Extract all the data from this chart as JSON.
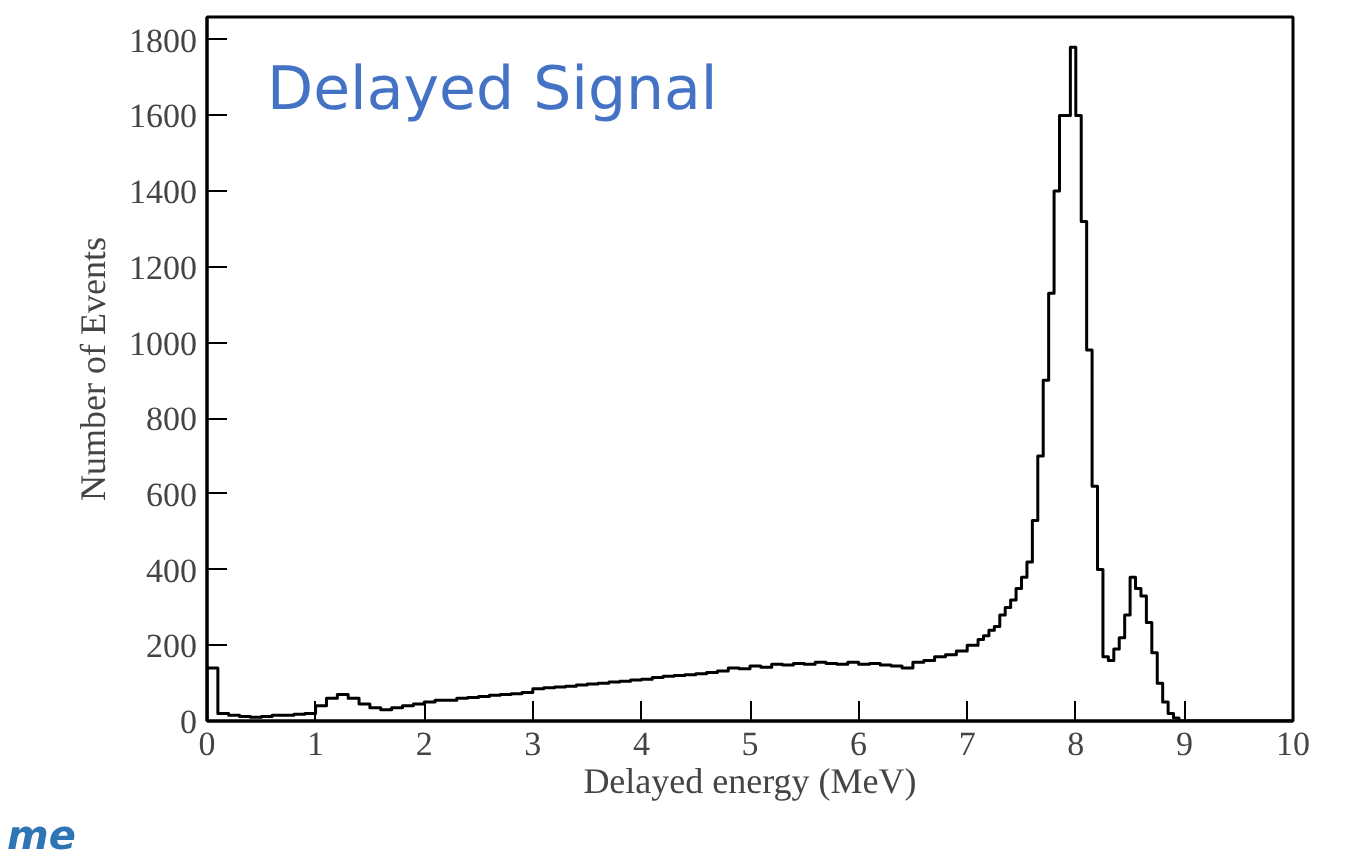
{
  "chart_data": {
    "type": "histogram",
    "title": "Delayed Signal",
    "xlabel": "Delayed energy (MeV)",
    "ylabel": "Number of Events",
    "annotations": [
      "me"
    ],
    "bins": [
      0,
      0.1,
      0.2,
      0.3,
      0.4,
      0.5,
      0.6,
      0.7,
      0.8,
      0.9,
      1.0,
      1.1,
      1.2,
      1.3,
      1.4,
      1.5,
      1.6,
      1.7,
      1.8,
      1.9,
      2.0,
      2.1,
      2.2,
      2.3,
      2.4,
      2.5,
      2.6,
      2.7,
      2.8,
      2.9,
      3.0,
      3.1,
      3.2,
      3.3,
      3.4,
      3.5,
      3.6,
      3.7,
      3.8,
      3.9,
      4.0,
      4.1,
      4.2,
      4.3,
      4.4,
      4.5,
      4.6,
      4.7,
      4.8,
      4.9,
      5.0,
      5.1,
      5.2,
      5.3,
      5.4,
      5.5,
      5.6,
      5.7,
      5.8,
      5.9,
      6.0,
      6.1,
      6.2,
      6.3,
      6.4,
      6.5,
      6.6,
      6.7,
      6.8,
      6.9,
      7.0,
      7.05,
      7.1,
      7.15,
      7.2,
      7.25,
      7.3,
      7.35,
      7.4,
      7.45,
      7.5,
      7.55,
      7.6,
      7.65,
      7.7,
      7.75,
      7.8,
      7.85,
      7.9,
      7.95,
      8.0,
      8.05,
      8.1,
      8.15,
      8.2,
      8.25,
      8.3,
      8.35,
      8.4,
      8.45,
      8.5,
      8.55,
      8.6,
      8.65,
      8.7,
      8.75,
      8.8,
      8.85,
      8.9,
      8.95,
      9.0,
      9.1,
      9.2,
      9.3,
      9.4,
      9.5,
      9.6,
      9.7,
      9.8,
      9.9,
      10.0
    ],
    "values": [
      140,
      20,
      15,
      12,
      10,
      12,
      15,
      15,
      18,
      20,
      40,
      60,
      70,
      60,
      45,
      35,
      30,
      35,
      40,
      45,
      50,
      55,
      55,
      60,
      62,
      65,
      68,
      70,
      72,
      75,
      85,
      88,
      90,
      92,
      95,
      98,
      100,
      103,
      105,
      108,
      110,
      115,
      118,
      120,
      122,
      125,
      128,
      132,
      140,
      138,
      145,
      142,
      150,
      148,
      152,
      150,
      155,
      152,
      150,
      155,
      150,
      152,
      148,
      145,
      140,
      155,
      160,
      170,
      175,
      185,
      200,
      200,
      215,
      225,
      240,
      250,
      280,
      300,
      320,
      350,
      380,
      420,
      530,
      700,
      900,
      1130,
      1400,
      1600,
      1600,
      1780,
      1600,
      1320,
      980,
      620,
      400,
      170,
      160,
      190,
      220,
      280,
      380,
      350,
      330,
      260,
      180,
      100,
      50,
      20,
      8,
      0,
      0,
      0,
      0,
      0,
      0,
      0,
      0,
      0,
      0,
      0
    ],
    "color": "#000000",
    "xlim": [
      0,
      10
    ],
    "ylim": [
      0,
      1860
    ],
    "xticks": [
      0,
      1,
      2,
      3,
      4,
      5,
      6,
      7,
      8,
      9,
      10
    ],
    "yticks": [
      0,
      200,
      400,
      600,
      800,
      1000,
      1200,
      1400,
      1600,
      1800
    ],
    "grid": false
  }
}
